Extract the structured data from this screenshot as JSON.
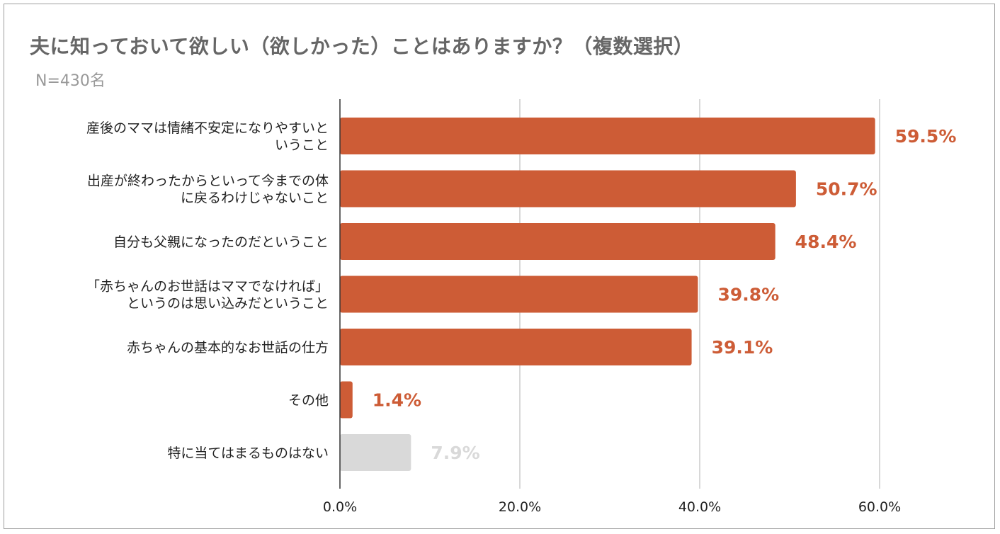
{
  "chart_data": {
    "type": "bar",
    "orientation": "horizontal",
    "title": "夫に知っておいて欲しい（欲しかった）ことはありますか？（複数選択）",
    "subtitle": "N=430名",
    "categories": [
      [
        "産後のママは情緒不安定になりやすいと",
        "いうこと"
      ],
      [
        "出産が終わったからといって今までの体",
        "に戻るわけじゃないこと"
      ],
      [
        "自分も父親になったのだということ"
      ],
      [
        "「赤ちゃんのお世話はママでなければ」",
        "というのは思い込みだということ"
      ],
      [
        "赤ちゃんの基本的なお世話の仕方"
      ],
      [
        "その他"
      ],
      [
        "特に当てはまるものはない"
      ]
    ],
    "values": [
      59.5,
      50.7,
      48.4,
      39.8,
      39.1,
      1.4,
      7.9
    ],
    "data_labels": [
      "59.5%",
      "50.7%",
      "48.4%",
      "39.8%",
      "39.1%",
      "1.4%",
      "7.9%"
    ],
    "bar_colors": [
      "#cd5c36",
      "#cd5c36",
      "#cd5c36",
      "#cd5c36",
      "#cd5c36",
      "#cd5c36",
      "#d9d9d9"
    ],
    "xlim": [
      0,
      60
    ],
    "x_ticks": [
      0,
      20,
      40,
      60
    ],
    "x_tick_labels": [
      "0.0%",
      "20.0%",
      "40.0%",
      "60.0%"
    ],
    "grid": true,
    "legend": "none"
  }
}
